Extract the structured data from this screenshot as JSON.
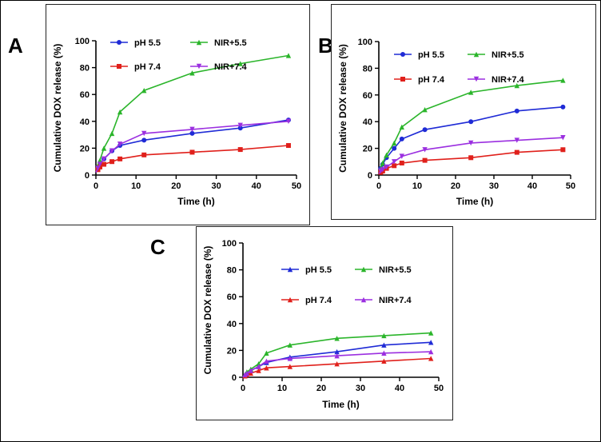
{
  "panel_labels": [
    "A",
    "B",
    "C"
  ],
  "colors": {
    "pH 5.5": "#1f2bd6",
    "pH 7.4": "#e0201b",
    "NIR+5.5": "#2bb52b",
    "NIR+7.4": "#9b2fe0",
    "axis": "#000000"
  },
  "chart_data": [
    {
      "panel": "A",
      "type": "line",
      "xlabel": "Time (h)",
      "ylabel": "Cumulative DOX release (%)",
      "xlim": [
        0,
        50
      ],
      "ylim": [
        0,
        100
      ],
      "xticks": [
        0,
        10,
        20,
        30,
        40,
        50
      ],
      "yticks": [
        0,
        20,
        40,
        60,
        80,
        100
      ],
      "x": [
        0,
        0.5,
        1,
        2,
        4,
        6,
        12,
        24,
        36,
        48
      ],
      "series": [
        {
          "name": "pH 5.5",
          "marker": "circle",
          "values": [
            2,
            5,
            8,
            12,
            18,
            22,
            26,
            31,
            35,
            41
          ]
        },
        {
          "name": "NIR+5.5",
          "marker": "triangle-up",
          "values": [
            3,
            7,
            11,
            20,
            31,
            47,
            63,
            76,
            83,
            89
          ]
        },
        {
          "name": "pH 7.4",
          "marker": "square",
          "values": [
            2,
            4,
            6,
            8,
            10,
            12,
            15,
            17,
            19,
            22
          ]
        },
        {
          "name": "NIR+7.4",
          "marker": "triangle-down",
          "values": [
            2,
            5,
            8,
            12,
            18,
            23,
            31,
            34,
            37,
            40
          ]
        }
      ],
      "legend": [
        {
          "name": "pH 5.5"
        },
        {
          "name": "NIR+5.5"
        },
        {
          "name": "pH 7.4"
        },
        {
          "name": "NIR+7.4"
        }
      ]
    },
    {
      "panel": "B",
      "type": "line",
      "xlabel": "Time (h)",
      "ylabel": "Cumulative DOX release (%)",
      "xlim": [
        0,
        50
      ],
      "ylim": [
        0,
        100
      ],
      "xticks": [
        0,
        10,
        20,
        30,
        40,
        50
      ],
      "yticks": [
        0,
        20,
        40,
        60,
        80,
        100
      ],
      "x": [
        0,
        0.5,
        1,
        2,
        4,
        6,
        12,
        24,
        36,
        48
      ],
      "series": [
        {
          "name": "pH 5.5",
          "marker": "circle",
          "values": [
            2,
            5,
            8,
            13,
            20,
            27,
            34,
            40,
            48,
            51
          ]
        },
        {
          "name": "NIR+5.5",
          "marker": "triangle-up",
          "values": [
            2,
            5,
            9,
            15,
            24,
            36,
            49,
            62,
            67,
            71
          ]
        },
        {
          "name": "pH 7.4",
          "marker": "square",
          "values": [
            1,
            2,
            3,
            5,
            7,
            9,
            11,
            13,
            17,
            19
          ]
        },
        {
          "name": "NIR+7.4",
          "marker": "triangle-down",
          "values": [
            1,
            3,
            4,
            6,
            10,
            14,
            19,
            24,
            26,
            28
          ]
        }
      ],
      "legend": [
        {
          "name": "pH 5.5"
        },
        {
          "name": "NIR+5.5"
        },
        {
          "name": "pH 7.4"
        },
        {
          "name": "NIR+7.4"
        }
      ]
    },
    {
      "panel": "C",
      "type": "line",
      "xlabel": "Time (h)",
      "ylabel": "Cumulative DOX release (%)",
      "xlim": [
        0,
        50
      ],
      "ylim": [
        0,
        100
      ],
      "xticks": [
        0,
        10,
        20,
        30,
        40,
        50
      ],
      "yticks": [
        0,
        20,
        40,
        60,
        80,
        100
      ],
      "x": [
        0,
        0.5,
        1,
        2,
        4,
        6,
        12,
        24,
        36,
        48
      ],
      "series": [
        {
          "name": "pH 5.5",
          "marker": "triangle-up",
          "values": [
            0,
            2,
            3,
            5,
            8,
            11,
            15,
            19,
            24,
            26
          ]
        },
        {
          "name": "NIR+5.5",
          "marker": "triangle-up",
          "values": [
            0,
            2,
            4,
            6,
            10,
            18,
            24,
            29,
            31,
            33
          ]
        },
        {
          "name": "pH 7.4",
          "marker": "triangle-up",
          "values": [
            0,
            1,
            2,
            3,
            5,
            7,
            8,
            10,
            12,
            14
          ]
        },
        {
          "name": "NIR+7.4",
          "marker": "triangle-up",
          "values": [
            0,
            2,
            3,
            5,
            8,
            12,
            14,
            16,
            18,
            19
          ]
        }
      ],
      "legend": [
        {
          "name": "pH 5.5"
        },
        {
          "name": "NIR+5.5"
        },
        {
          "name": "pH 7.4"
        },
        {
          "name": "NIR+7.4"
        }
      ]
    }
  ]
}
